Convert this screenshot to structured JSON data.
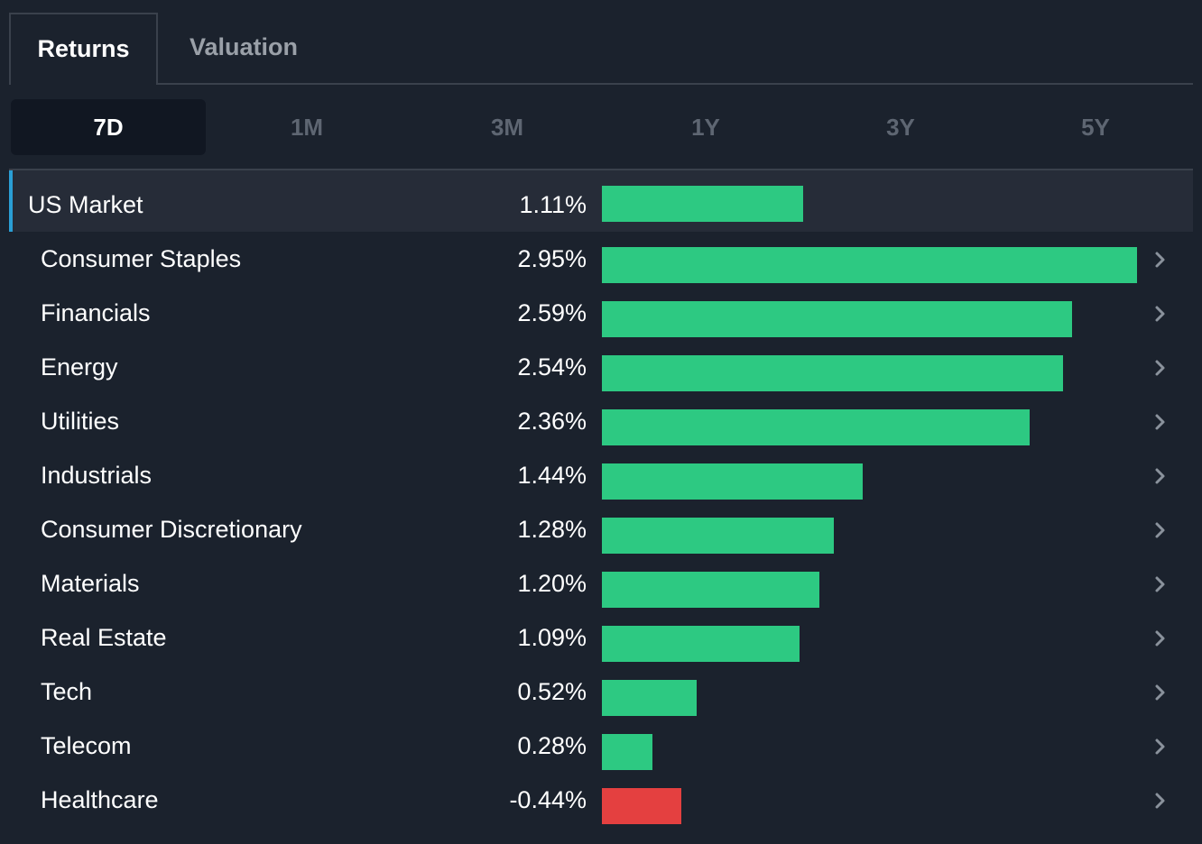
{
  "tabs": [
    {
      "label": "Returns",
      "active": true
    },
    {
      "label": "Valuation",
      "active": false
    }
  ],
  "periods": [
    {
      "label": "7D",
      "active": true
    },
    {
      "label": "1M",
      "active": false
    },
    {
      "label": "3M",
      "active": false
    },
    {
      "label": "1Y",
      "active": false
    },
    {
      "label": "3Y",
      "active": false
    },
    {
      "label": "5Y",
      "active": false
    }
  ],
  "colors": {
    "positive": "#2dc982",
    "negative": "#e44040",
    "accent": "#2a9fd6",
    "chevron": "#8a929c"
  },
  "chart_data": {
    "type": "bar",
    "orientation": "horizontal",
    "period": "7D",
    "unit": "%",
    "categories": [
      "US Market",
      "Consumer Staples",
      "Financials",
      "Energy",
      "Utilities",
      "Industrials",
      "Consumer Discretionary",
      "Materials",
      "Real Estate",
      "Tech",
      "Telecom",
      "Healthcare"
    ],
    "values": [
      1.11,
      2.95,
      2.59,
      2.54,
      2.36,
      1.44,
      1.28,
      1.2,
      1.09,
      0.52,
      0.28,
      -0.44
    ],
    "labels": [
      "1.11%",
      "2.95%",
      "2.59%",
      "2.54%",
      "2.36%",
      "1.44%",
      "1.28%",
      "1.20%",
      "1.09%",
      "0.52%",
      "0.28%",
      "-0.44%"
    ],
    "highlighted": "US Market"
  }
}
